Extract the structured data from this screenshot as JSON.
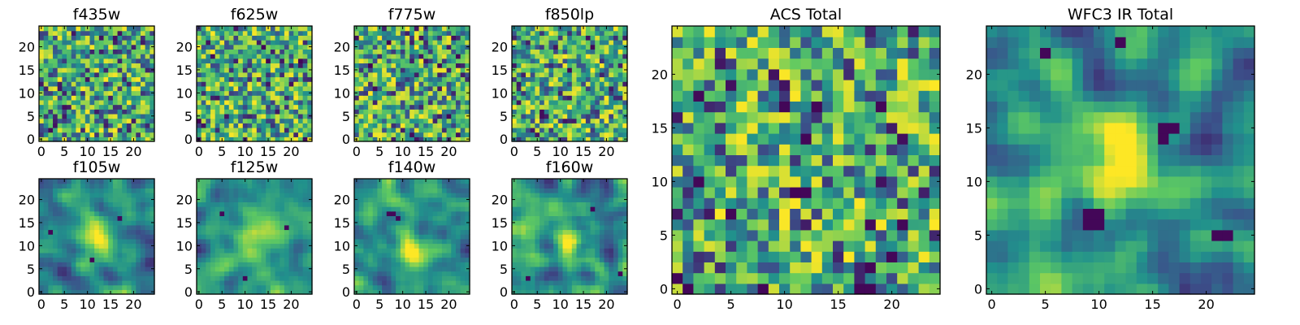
{
  "figure": {
    "colormap": "viridis",
    "colormap_stops": [
      "#440154",
      "#3b528b",
      "#21918c",
      "#5ec962",
      "#fde725"
    ]
  },
  "chart_data": [
    {
      "type": "heatmap",
      "id": "f435w",
      "title": "f435w",
      "grid": [
        25,
        25
      ],
      "xlim": [
        0,
        24
      ],
      "ylim": [
        0,
        24
      ],
      "xticks": [
        "0",
        "5",
        "10",
        "15",
        "20"
      ],
      "yticks": [
        "0",
        "5",
        "10",
        "15",
        "20"
      ],
      "seed": 435,
      "smoothing": 0,
      "blob": null,
      "dark_pixels": []
    },
    {
      "type": "heatmap",
      "id": "f625w",
      "title": "f625w",
      "grid": [
        25,
        25
      ],
      "xlim": [
        0,
        24
      ],
      "ylim": [
        0,
        24
      ],
      "xticks": [
        "0",
        "5",
        "10",
        "15",
        "20"
      ],
      "yticks": [
        "0",
        "5",
        "10",
        "15",
        "20"
      ],
      "seed": 625,
      "smoothing": 0,
      "blob": null,
      "dark_pixels": []
    },
    {
      "type": "heatmap",
      "id": "f775w",
      "title": "f775w",
      "grid": [
        25,
        25
      ],
      "xlim": [
        0,
        24
      ],
      "ylim": [
        0,
        24
      ],
      "xticks": [
        "0",
        "5",
        "10",
        "15",
        "20"
      ],
      "yticks": [
        "0",
        "5",
        "10",
        "15",
        "20"
      ],
      "seed": 775,
      "smoothing": 0,
      "blob": null,
      "dark_pixels": []
    },
    {
      "type": "heatmap",
      "id": "f850lp",
      "title": "f850lp",
      "grid": [
        25,
        25
      ],
      "xlim": [
        0,
        24
      ],
      "ylim": [
        0,
        24
      ],
      "xticks": [
        "0",
        "5",
        "10",
        "15",
        "20"
      ],
      "yticks": [
        "0",
        "5",
        "10",
        "15",
        "20"
      ],
      "seed": 850,
      "smoothing": 0,
      "blob": null,
      "dark_pixels": []
    },
    {
      "type": "heatmap",
      "id": "f105w",
      "title": "f105w",
      "grid": [
        25,
        25
      ],
      "xlim": [
        0,
        24
      ],
      "ylim": [
        0,
        24
      ],
      "xticks": [
        "0",
        "5",
        "10",
        "15",
        "20"
      ],
      "yticks": [
        "0",
        "5",
        "10",
        "15",
        "20"
      ],
      "seed": 105,
      "smoothing": 2,
      "blob": {
        "cx": 12,
        "cy": 11,
        "sigma": 3.0,
        "amp": 0.45
      },
      "dark_pixels": [
        [
          11,
          7
        ],
        [
          17,
          16
        ],
        [
          2,
          13
        ]
      ]
    },
    {
      "type": "heatmap",
      "id": "f125w",
      "title": "f125w",
      "grid": [
        25,
        25
      ],
      "xlim": [
        0,
        24
      ],
      "ylim": [
        0,
        24
      ],
      "xticks": [
        "0",
        "5",
        "10",
        "15",
        "20"
      ],
      "yticks": [
        "0",
        "5",
        "10",
        "15",
        "20"
      ],
      "seed": 125,
      "smoothing": 2,
      "blob": {
        "cx": 12,
        "cy": 11,
        "sigma": 3.0,
        "amp": 0.45
      },
      "dark_pixels": [
        [
          10,
          3
        ],
        [
          5,
          17
        ],
        [
          19,
          14
        ]
      ]
    },
    {
      "type": "heatmap",
      "id": "f140w",
      "title": "f140w",
      "grid": [
        25,
        25
      ],
      "xlim": [
        0,
        24
      ],
      "ylim": [
        0,
        24
      ],
      "xticks": [
        "0",
        "5",
        "10",
        "15",
        "20"
      ],
      "yticks": [
        "0",
        "5",
        "10",
        "15",
        "20"
      ],
      "seed": 140,
      "smoothing": 2,
      "blob": {
        "cx": 12,
        "cy": 10,
        "sigma": 3.0,
        "amp": 0.4
      },
      "dark_pixels": [
        [
          7,
          17
        ],
        [
          8,
          17
        ],
        [
          9,
          16
        ]
      ]
    },
    {
      "type": "heatmap",
      "id": "f160w",
      "title": "f160w",
      "grid": [
        25,
        25
      ],
      "xlim": [
        0,
        24
      ],
      "ylim": [
        0,
        24
      ],
      "xticks": [
        "0",
        "5",
        "10",
        "15",
        "20"
      ],
      "yticks": [
        "0",
        "5",
        "10",
        "15",
        "20"
      ],
      "seed": 160,
      "smoothing": 2,
      "blob": {
        "cx": 12,
        "cy": 11,
        "sigma": 3.0,
        "amp": 0.4
      },
      "dark_pixels": [
        [
          23,
          4
        ],
        [
          17,
          18
        ],
        [
          3,
          3
        ]
      ]
    },
    {
      "type": "heatmap",
      "id": "acs-total",
      "title": "ACS Total",
      "grid": [
        25,
        25
      ],
      "xlim": [
        0,
        24
      ],
      "ylim": [
        0,
        24
      ],
      "xticks": [
        "0",
        "5",
        "10",
        "15",
        "20"
      ],
      "yticks": [
        "0",
        "5",
        "10",
        "15",
        "20"
      ],
      "seed": 9001,
      "smoothing": 0,
      "blob": null,
      "dark_pixels": [
        [
          17,
          0
        ],
        [
          18,
          0
        ],
        [
          8,
          0
        ],
        [
          0,
          1
        ],
        [
          1,
          0
        ],
        [
          12,
          9
        ],
        [
          2,
          10
        ],
        [
          5,
          7
        ],
        [
          13,
          17
        ],
        [
          10,
          17
        ],
        [
          19,
          17
        ],
        [
          21,
          6
        ],
        [
          18,
          2
        ],
        [
          20,
          3
        ]
      ]
    },
    {
      "type": "heatmap",
      "id": "wfc3-ir-total",
      "title": "WFC3 IR Total",
      "grid": [
        25,
        25
      ],
      "xlim": [
        0,
        24
      ],
      "ylim": [
        0,
        24
      ],
      "xticks": [
        "0",
        "5",
        "10",
        "15",
        "20"
      ],
      "yticks": [
        "0",
        "5",
        "10",
        "15",
        "20"
      ],
      "seed": 160140,
      "smoothing": 2,
      "blob": {
        "cx": 12,
        "cy": 12,
        "sigma": 2.6,
        "amp": 0.55
      },
      "dark_pixels": [
        [
          9,
          7
        ],
        [
          10,
          7
        ],
        [
          9,
          6
        ],
        [
          10,
          6
        ],
        [
          16,
          15
        ],
        [
          17,
          15
        ],
        [
          16,
          14
        ],
        [
          21,
          5
        ],
        [
          22,
          5
        ],
        [
          5,
          22
        ],
        [
          12,
          23
        ]
      ]
    }
  ]
}
